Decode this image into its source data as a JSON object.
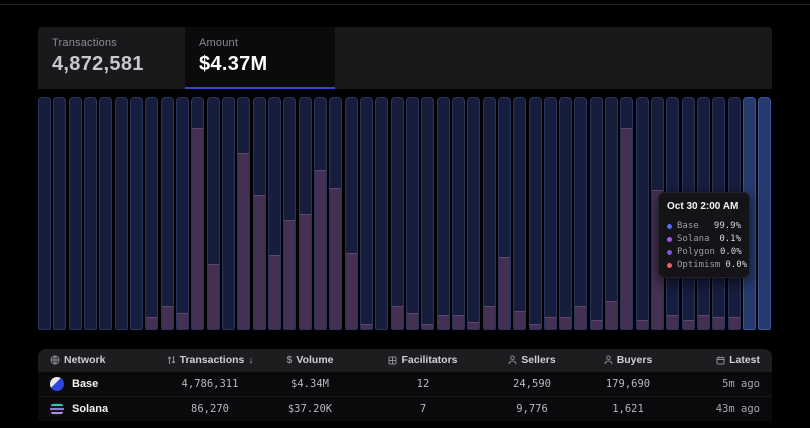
{
  "stats": {
    "tabs": [
      {
        "label": "Transactions",
        "value": "4,872,581",
        "active": false
      },
      {
        "label": "Amount",
        "value": "$4.37M",
        "active": true
      }
    ],
    "active_underline_color": "#3648c6"
  },
  "chart_data": {
    "type": "bar",
    "subtype": "100%-stacked hourly bars, 48 hours, no axis labels shown",
    "bar_count": 48,
    "series": [
      {
        "name": "Base",
        "color": "#171e3d"
      },
      {
        "name": "Other networks (Solana/Polygon/Optimism)",
        "color": "#443052"
      }
    ],
    "other_share_fraction": [
      0,
      0,
      0,
      0,
      0,
      0,
      0,
      0.05,
      0.1,
      0.07,
      0.87,
      0.28,
      0,
      0.76,
      0.58,
      0.32,
      0.47,
      0.5,
      0.69,
      0.61,
      0.33,
      0.02,
      0,
      0.1,
      0.07,
      0.02,
      0.06,
      0.06,
      0.03,
      0.1,
      0.31,
      0.08,
      0.02,
      0.05,
      0.05,
      0.1,
      0.04,
      0.12,
      0.87,
      0.04,
      0.6,
      0.06,
      0.04,
      0.06,
      0.05,
      0.05,
      0,
      0
    ],
    "highlighted_bar_indices": [
      46,
      47
    ],
    "highlight_color": "#253b6e",
    "tooltip": {
      "title": "Oct 30 2:00 AM",
      "rows": [
        {
          "name": "Base",
          "value": "99.9%",
          "color": "#5b68f5"
        },
        {
          "name": "Solana",
          "value": "0.1%",
          "color": "#a455f0"
        },
        {
          "name": "Polygon",
          "value": "0.0%",
          "color": "#7d55e8"
        },
        {
          "name": "Optimism",
          "value": "0.0%",
          "color": "#e9606b"
        }
      ]
    }
  },
  "table": {
    "columns": [
      {
        "label": "Network"
      },
      {
        "label": "Transactions",
        "sort_indicator": "↓"
      },
      {
        "label": "Volume"
      },
      {
        "label": "Facilitators"
      },
      {
        "label": "Sellers"
      },
      {
        "label": "Buyers"
      },
      {
        "label": "Latest"
      }
    ],
    "rows": [
      {
        "network": "Base",
        "transactions": "4,786,311",
        "volume": "$4.34M",
        "facilitators": "12",
        "sellers": "24,590",
        "buyers": "179,690",
        "latest": "5m ago"
      },
      {
        "network": "Solana",
        "transactions": "86,270",
        "volume": "$37.20K",
        "facilitators": "7",
        "sellers": "9,776",
        "buyers": "1,621",
        "latest": "43m ago"
      }
    ]
  }
}
